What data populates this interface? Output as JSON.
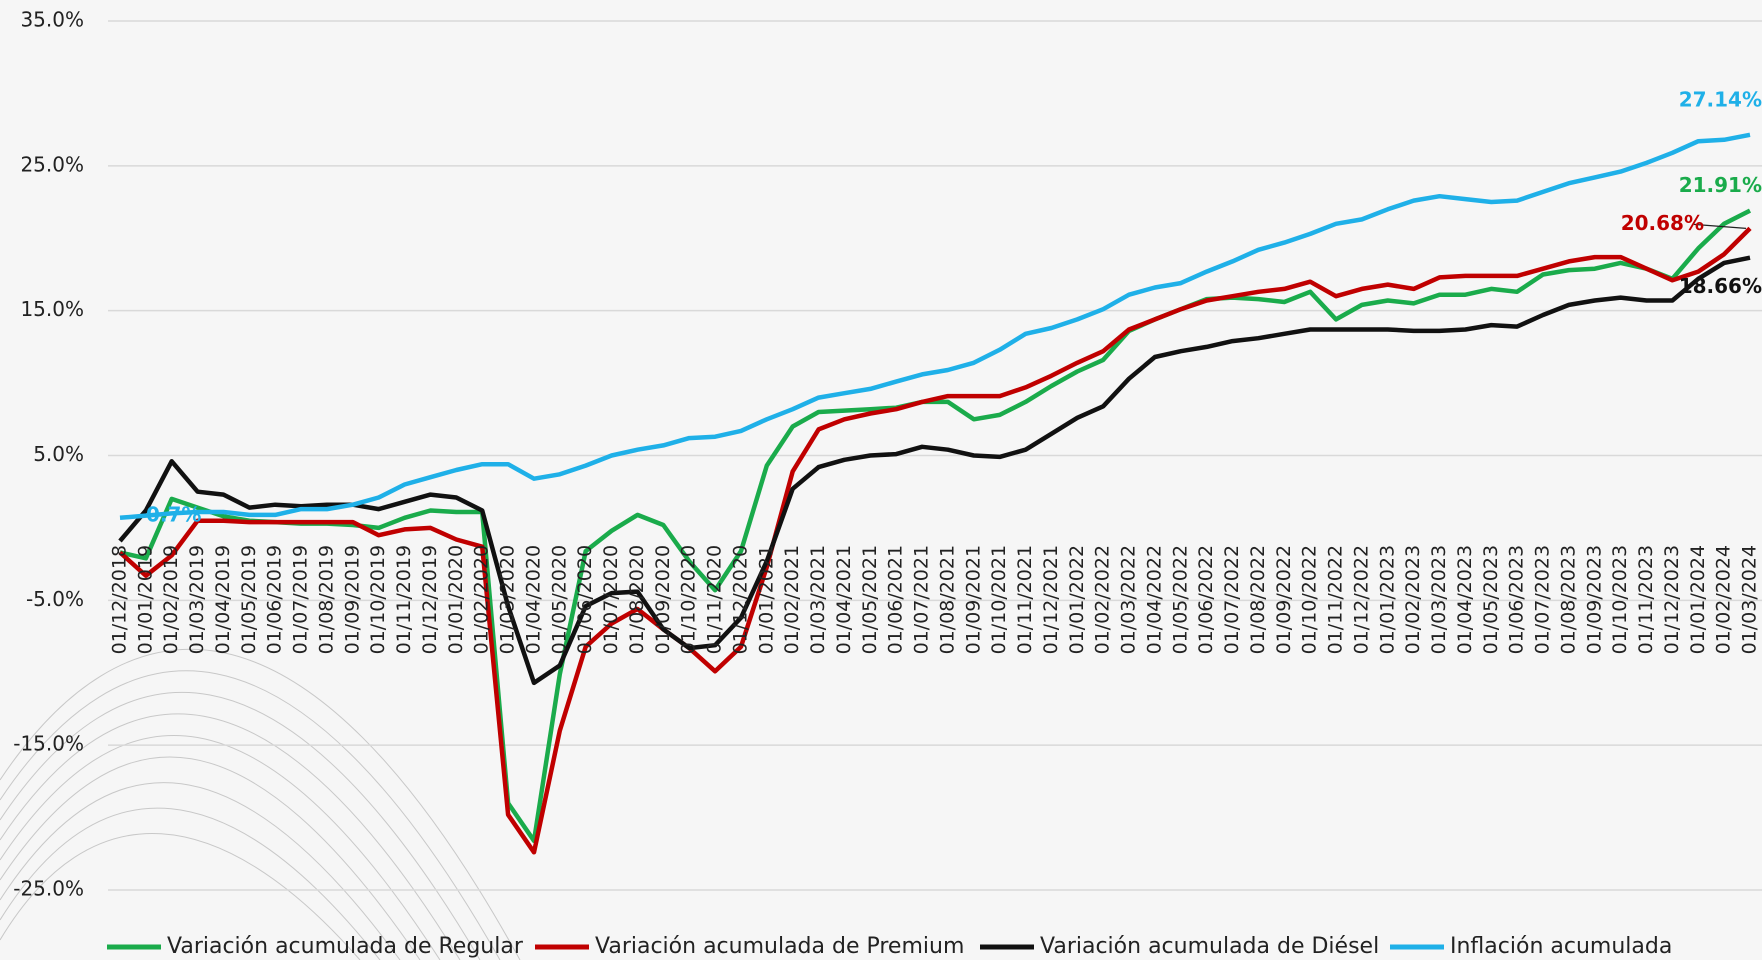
{
  "chart_data": {
    "type": "line",
    "categories": [
      "01/12/2018",
      "01/01/2019",
      "01/02/2019",
      "01/03/2019",
      "01/04/2019",
      "01/05/2019",
      "01/06/2019",
      "01/07/2019",
      "01/08/2019",
      "01/09/2019",
      "01/10/2019",
      "01/11/2019",
      "01/12/2019",
      "01/01/2020",
      "01/02/2020",
      "01/03/2020",
      "01/04/2020",
      "01/05/2020",
      "01/06/2020",
      "01/07/2020",
      "01/08/2020",
      "01/09/2020",
      "01/10/2020",
      "01/11/2020",
      "01/12/2020",
      "01/01/2021",
      "01/02/2021",
      "01/03/2021",
      "01/04/2021",
      "01/05/2021",
      "01/06/2021",
      "01/07/2021",
      "01/08/2021",
      "01/09/2021",
      "01/10/2021",
      "01/11/2021",
      "01/12/2021",
      "01/01/2022",
      "01/02/2022",
      "01/03/2022",
      "01/04/2022",
      "01/05/2022",
      "01/06/2022",
      "01/07/2022",
      "01/08/2022",
      "01/09/2022",
      "01/10/2022",
      "01/11/2022",
      "01/12/2022",
      "01/01/2023",
      "01/02/2023",
      "01/03/2023",
      "01/04/2023",
      "01/05/2023",
      "01/06/2023",
      "01/07/2023",
      "01/08/2023",
      "01/09/2023",
      "01/10/2023",
      "01/11/2023",
      "01/12/2023",
      "01/01/2024",
      "01/02/2024",
      "01/03/2024"
    ],
    "series": [
      {
        "name": "Variación acumulada de Regular",
        "color": "#1aab4b",
        "values": [
          -1.7,
          -2.1,
          2.0,
          1.4,
          0.8,
          0.5,
          0.4,
          0.3,
          0.3,
          0.2,
          0.0,
          0.7,
          1.2,
          1.1,
          1.1,
          -19.0,
          -21.6,
          -10.1,
          -1.6,
          -0.2,
          0.9,
          0.2,
          -2.3,
          -4.3,
          -1.6,
          4.3,
          7.0,
          8.0,
          8.1,
          8.2,
          8.3,
          8.7,
          8.7,
          7.5,
          7.8,
          8.7,
          9.8,
          10.8,
          11.6,
          13.6,
          14.4,
          15.1,
          15.8,
          15.9,
          15.8,
          15.6,
          16.3,
          14.4,
          15.4,
          15.7,
          15.5,
          16.1,
          16.1,
          16.5,
          16.3,
          17.5,
          17.8,
          17.9,
          18.3,
          17.9,
          17.2,
          19.3,
          21.0,
          21.91
        ],
        "value_labels": [
          null,
          null,
          null,
          null,
          null,
          null,
          null,
          null,
          null,
          null,
          null,
          null,
          null,
          null,
          null,
          null,
          null,
          null,
          null,
          null,
          null,
          null,
          null,
          null,
          null,
          null,
          null,
          null,
          null,
          null,
          null,
          null,
          null,
          null,
          null,
          null,
          null,
          null,
          null,
          null,
          null,
          null,
          null,
          null,
          null,
          null,
          null,
          null,
          null,
          null,
          null,
          null,
          null,
          null,
          null,
          null,
          null,
          null,
          null,
          null,
          null,
          null,
          null,
          "21.91%"
        ]
      },
      {
        "name": "Variación acumulada de Premium",
        "color": "#c00000",
        "values": [
          -1.7,
          -3.3,
          -1.9,
          0.5,
          0.5,
          0.4,
          0.4,
          0.4,
          0.4,
          0.4,
          -0.5,
          -0.1,
          0.0,
          -0.8,
          -1.3,
          -19.8,
          -22.4,
          -14.0,
          -8.2,
          -6.6,
          -5.6,
          -7.0,
          -8.3,
          -9.9,
          -8.2,
          -2.7,
          3.9,
          6.8,
          7.5,
          7.9,
          8.2,
          8.7,
          9.1,
          9.1,
          9.1,
          9.7,
          10.5,
          11.4,
          12.2,
          13.7,
          14.4,
          15.1,
          15.7,
          16.0,
          16.3,
          16.5,
          17.0,
          16.0,
          16.5,
          16.8,
          16.5,
          17.3,
          17.4,
          17.4,
          17.4,
          17.9,
          18.4,
          18.7,
          18.7,
          17.9,
          17.1,
          17.7,
          18.9,
          20.68
        ],
        "value_labels": [
          null,
          null,
          null,
          null,
          null,
          null,
          null,
          null,
          null,
          null,
          null,
          null,
          null,
          null,
          null,
          null,
          null,
          null,
          null,
          null,
          null,
          null,
          null,
          null,
          null,
          null,
          null,
          null,
          null,
          null,
          null,
          null,
          null,
          null,
          null,
          null,
          null,
          null,
          null,
          null,
          null,
          null,
          null,
          null,
          null,
          null,
          null,
          null,
          null,
          null,
          null,
          null,
          null,
          null,
          null,
          null,
          null,
          null,
          null,
          null,
          null,
          null,
          null,
          "20.68%"
        ]
      },
      {
        "name": "Variación acumulada de Diésel",
        "color": "#111111",
        "values": [
          -0.9,
          1.2,
          4.6,
          2.5,
          2.3,
          1.4,
          1.6,
          1.5,
          1.6,
          1.6,
          1.3,
          1.8,
          2.3,
          2.1,
          1.2,
          -5.4,
          -10.7,
          -9.5,
          -5.4,
          -4.5,
          -4.4,
          -7.0,
          -8.3,
          -8.1,
          -6.2,
          -2.3,
          2.7,
          4.2,
          4.7,
          5.0,
          5.1,
          5.6,
          5.4,
          5.0,
          4.9,
          5.4,
          6.5,
          7.6,
          8.4,
          10.3,
          11.8,
          12.2,
          12.5,
          12.9,
          13.1,
          13.4,
          13.7,
          13.7,
          13.7,
          13.7,
          13.6,
          13.6,
          13.7,
          14.0,
          13.9,
          14.7,
          15.4,
          15.7,
          15.9,
          15.7,
          15.7,
          17.2,
          18.3,
          18.66
        ],
        "value_labels": [
          null,
          null,
          null,
          null,
          null,
          null,
          null,
          null,
          null,
          null,
          null,
          null,
          null,
          null,
          null,
          null,
          null,
          null,
          null,
          null,
          null,
          null,
          null,
          null,
          null,
          null,
          null,
          null,
          null,
          null,
          null,
          null,
          null,
          null,
          null,
          null,
          null,
          null,
          null,
          null,
          null,
          null,
          null,
          null,
          null,
          null,
          null,
          null,
          null,
          null,
          null,
          null,
          null,
          null,
          null,
          null,
          null,
          null,
          null,
          null,
          null,
          null,
          null,
          "18.66%"
        ]
      },
      {
        "name": "Inflación acumulada",
        "color": "#1fb0e8",
        "values": [
          0.7,
          0.85,
          1.0,
          1.1,
          1.1,
          0.9,
          0.9,
          1.3,
          1.3,
          1.6,
          2.1,
          3.0,
          3.5,
          4.0,
          4.4,
          4.4,
          3.4,
          3.7,
          4.3,
          5.0,
          5.4,
          5.7,
          6.2,
          6.3,
          6.7,
          7.5,
          8.2,
          9.0,
          9.3,
          9.6,
          10.1,
          10.6,
          10.9,
          11.4,
          12.3,
          13.4,
          13.8,
          14.4,
          15.1,
          16.1,
          16.6,
          16.9,
          17.7,
          18.4,
          19.2,
          19.7,
          20.3,
          21.0,
          21.3,
          22.0,
          22.6,
          22.9,
          22.7,
          22.5,
          22.6,
          23.2,
          23.8,
          24.2,
          24.6,
          25.2,
          25.9,
          26.7,
          26.8,
          27.14
        ],
        "value_labels": [
          "0.7%",
          null,
          null,
          null,
          null,
          null,
          null,
          null,
          null,
          null,
          null,
          null,
          null,
          null,
          null,
          null,
          null,
          null,
          null,
          null,
          null,
          null,
          null,
          null,
          null,
          null,
          null,
          null,
          null,
          null,
          null,
          null,
          null,
          null,
          null,
          null,
          null,
          null,
          null,
          null,
          null,
          null,
          null,
          null,
          null,
          null,
          null,
          null,
          null,
          null,
          null,
          null,
          null,
          null,
          null,
          null,
          null,
          null,
          null,
          null,
          null,
          null,
          null,
          "27.14%"
        ]
      }
    ],
    "ylim": [
      -25,
      35
    ],
    "yticks": [
      {
        "value": -25,
        "label": "-25.0%"
      },
      {
        "value": -15,
        "label": "-15.0%"
      },
      {
        "value": -5,
        "label": "-5.0%"
      },
      {
        "value": 5,
        "label": "5.0%"
      },
      {
        "value": 15,
        "label": "15.0%"
      },
      {
        "value": 25,
        "label": "25.0%"
      },
      {
        "value": 35,
        "label": "35.0%"
      }
    ],
    "grid": true,
    "legend": "bottom"
  }
}
